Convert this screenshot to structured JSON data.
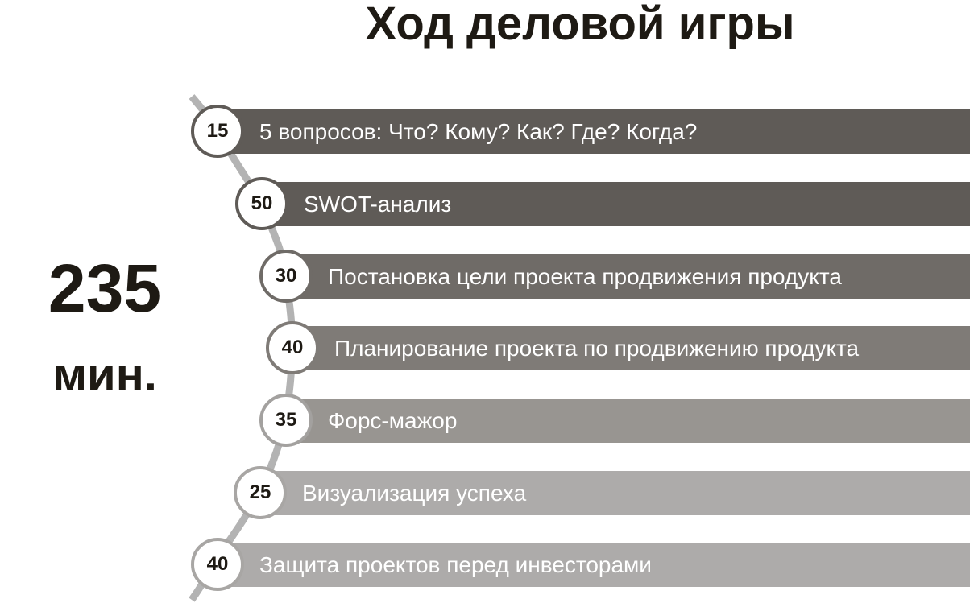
{
  "title": "Ход деловой игры",
  "total": {
    "value": "235",
    "unit": "мин."
  },
  "steps": [
    {
      "minutes": "15",
      "label": "5 вопросов: Что? Кому? Как? Где? Когда?",
      "color": "#5f5b57"
    },
    {
      "minutes": "50",
      "label": "SWOT-анализ",
      "color": "#5f5b57"
    },
    {
      "minutes": "30",
      "label": "Постановка цели проекта продвижения продукта",
      "color": "#6f6b67"
    },
    {
      "minutes": "40",
      "label": "Планирование проекта по продвижению продукта",
      "color": "#7f7b77"
    },
    {
      "minutes": "35",
      "label": "Форс-мажор",
      "color": "#989591"
    },
    {
      "minutes": "25",
      "label": "Визуализация успеха",
      "color": "#adabaa"
    },
    {
      "minutes": "40",
      "label": "Защита проектов перед инвесторами",
      "color": "#adabaa"
    }
  ],
  "line_color": "#b3b3b3"
}
